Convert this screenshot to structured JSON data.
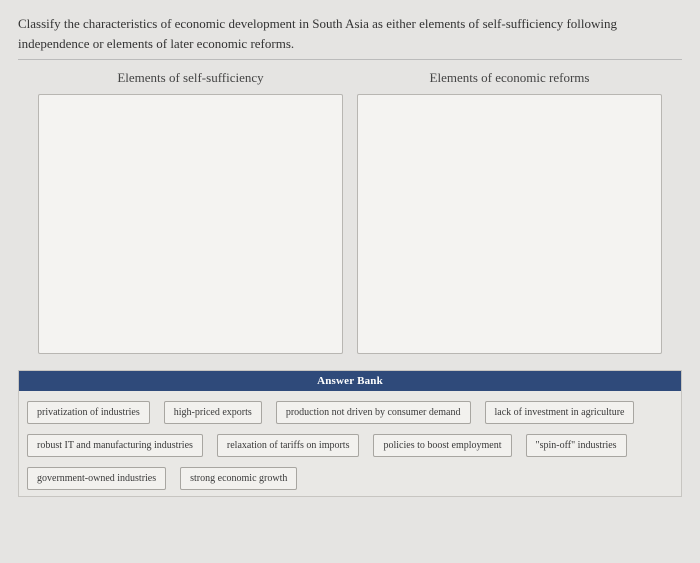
{
  "question": "Classify the characteristics of economic development in South Asia as either elements of self-sufficiency following independence or elements of later economic reforms.",
  "dropzones": {
    "left": {
      "title": "Elements of self-sufficiency"
    },
    "right": {
      "title": "Elements of economic reforms"
    }
  },
  "answer_bank": {
    "header": "Answer Bank",
    "items": [
      "privatization of industries",
      "high-priced exports",
      "production not driven by consumer demand",
      "lack of investment in agriculture",
      "robust IT and manufacturing industries",
      "relaxation of tariffs on imports",
      "policies to boost employment",
      "\"spin-off\" industries",
      "government-owned industries",
      "strong economic growth"
    ]
  },
  "colors": {
    "page_bg": "#e5e4e2",
    "dropzone_bg": "#f4f3f1",
    "dropzone_border": "#b8b6b2",
    "bank_header_bg": "#2f4a7a",
    "bank_header_text": "#ffffff",
    "chip_bg": "#f2f1ee",
    "chip_border": "#a8a6a1",
    "text": "#333333"
  }
}
